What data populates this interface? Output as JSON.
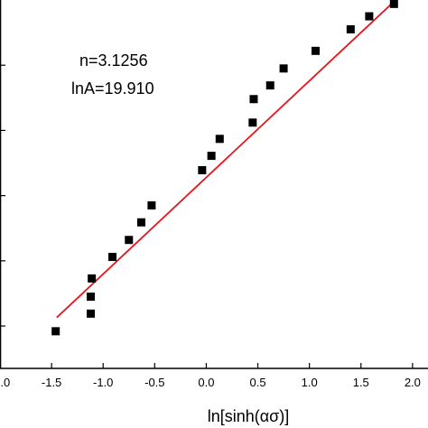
{
  "chart_data": {
    "type": "scatter",
    "xlabel": "ln[sinh(ασ)]",
    "ylabel": "",
    "title": "",
    "xlim": [
      -2.0,
      2.15
    ],
    "ylim": [
      -2.65,
      3.0
    ],
    "x_ticks": [
      -1.5,
      -1.0,
      -0.5,
      0.0,
      0.5,
      1.0,
      1.5,
      2.0
    ],
    "x_tick_labels": [
      "-1.5",
      "-1.0",
      "-0.5",
      "0.0",
      "0.5",
      "1.0",
      "1.5",
      "2.0"
    ],
    "y_ticks": [
      -2.0,
      -1.0,
      0.0,
      1.0,
      2.0
    ],
    "annotations": [
      "n=3.1256",
      "lnA=19.910"
    ],
    "grid": false,
    "points": [
      {
        "x": -1.46,
        "y": -2.08
      },
      {
        "x": -1.12,
        "y": -1.81
      },
      {
        "x": -1.12,
        "y": -1.55
      },
      {
        "x": -1.11,
        "y": -1.27
      },
      {
        "x": -0.91,
        "y": -0.94
      },
      {
        "x": -0.75,
        "y": -0.68
      },
      {
        "x": -0.63,
        "y": -0.41
      },
      {
        "x": -0.53,
        "y": -0.15
      },
      {
        "x": -0.04,
        "y": 0.39
      },
      {
        "x": 0.05,
        "y": 0.61
      },
      {
        "x": 0.13,
        "y": 0.87
      },
      {
        "x": 0.45,
        "y": 1.12
      },
      {
        "x": 0.46,
        "y": 1.48
      },
      {
        "x": 0.62,
        "y": 1.69
      },
      {
        "x": 0.75,
        "y": 1.95
      },
      {
        "x": 1.06,
        "y": 2.22
      },
      {
        "x": 1.4,
        "y": 2.55
      },
      {
        "x": 1.58,
        "y": 2.75
      },
      {
        "x": 1.82,
        "y": 2.94
      }
    ],
    "fit_line": {
      "x": [
        -1.45,
        1.85
      ],
      "y": [
        -1.87,
        3.02
      ]
    },
    "colors": {
      "points": "#000000",
      "fit_line": "#e8141b",
      "axes": "#000000"
    }
  }
}
